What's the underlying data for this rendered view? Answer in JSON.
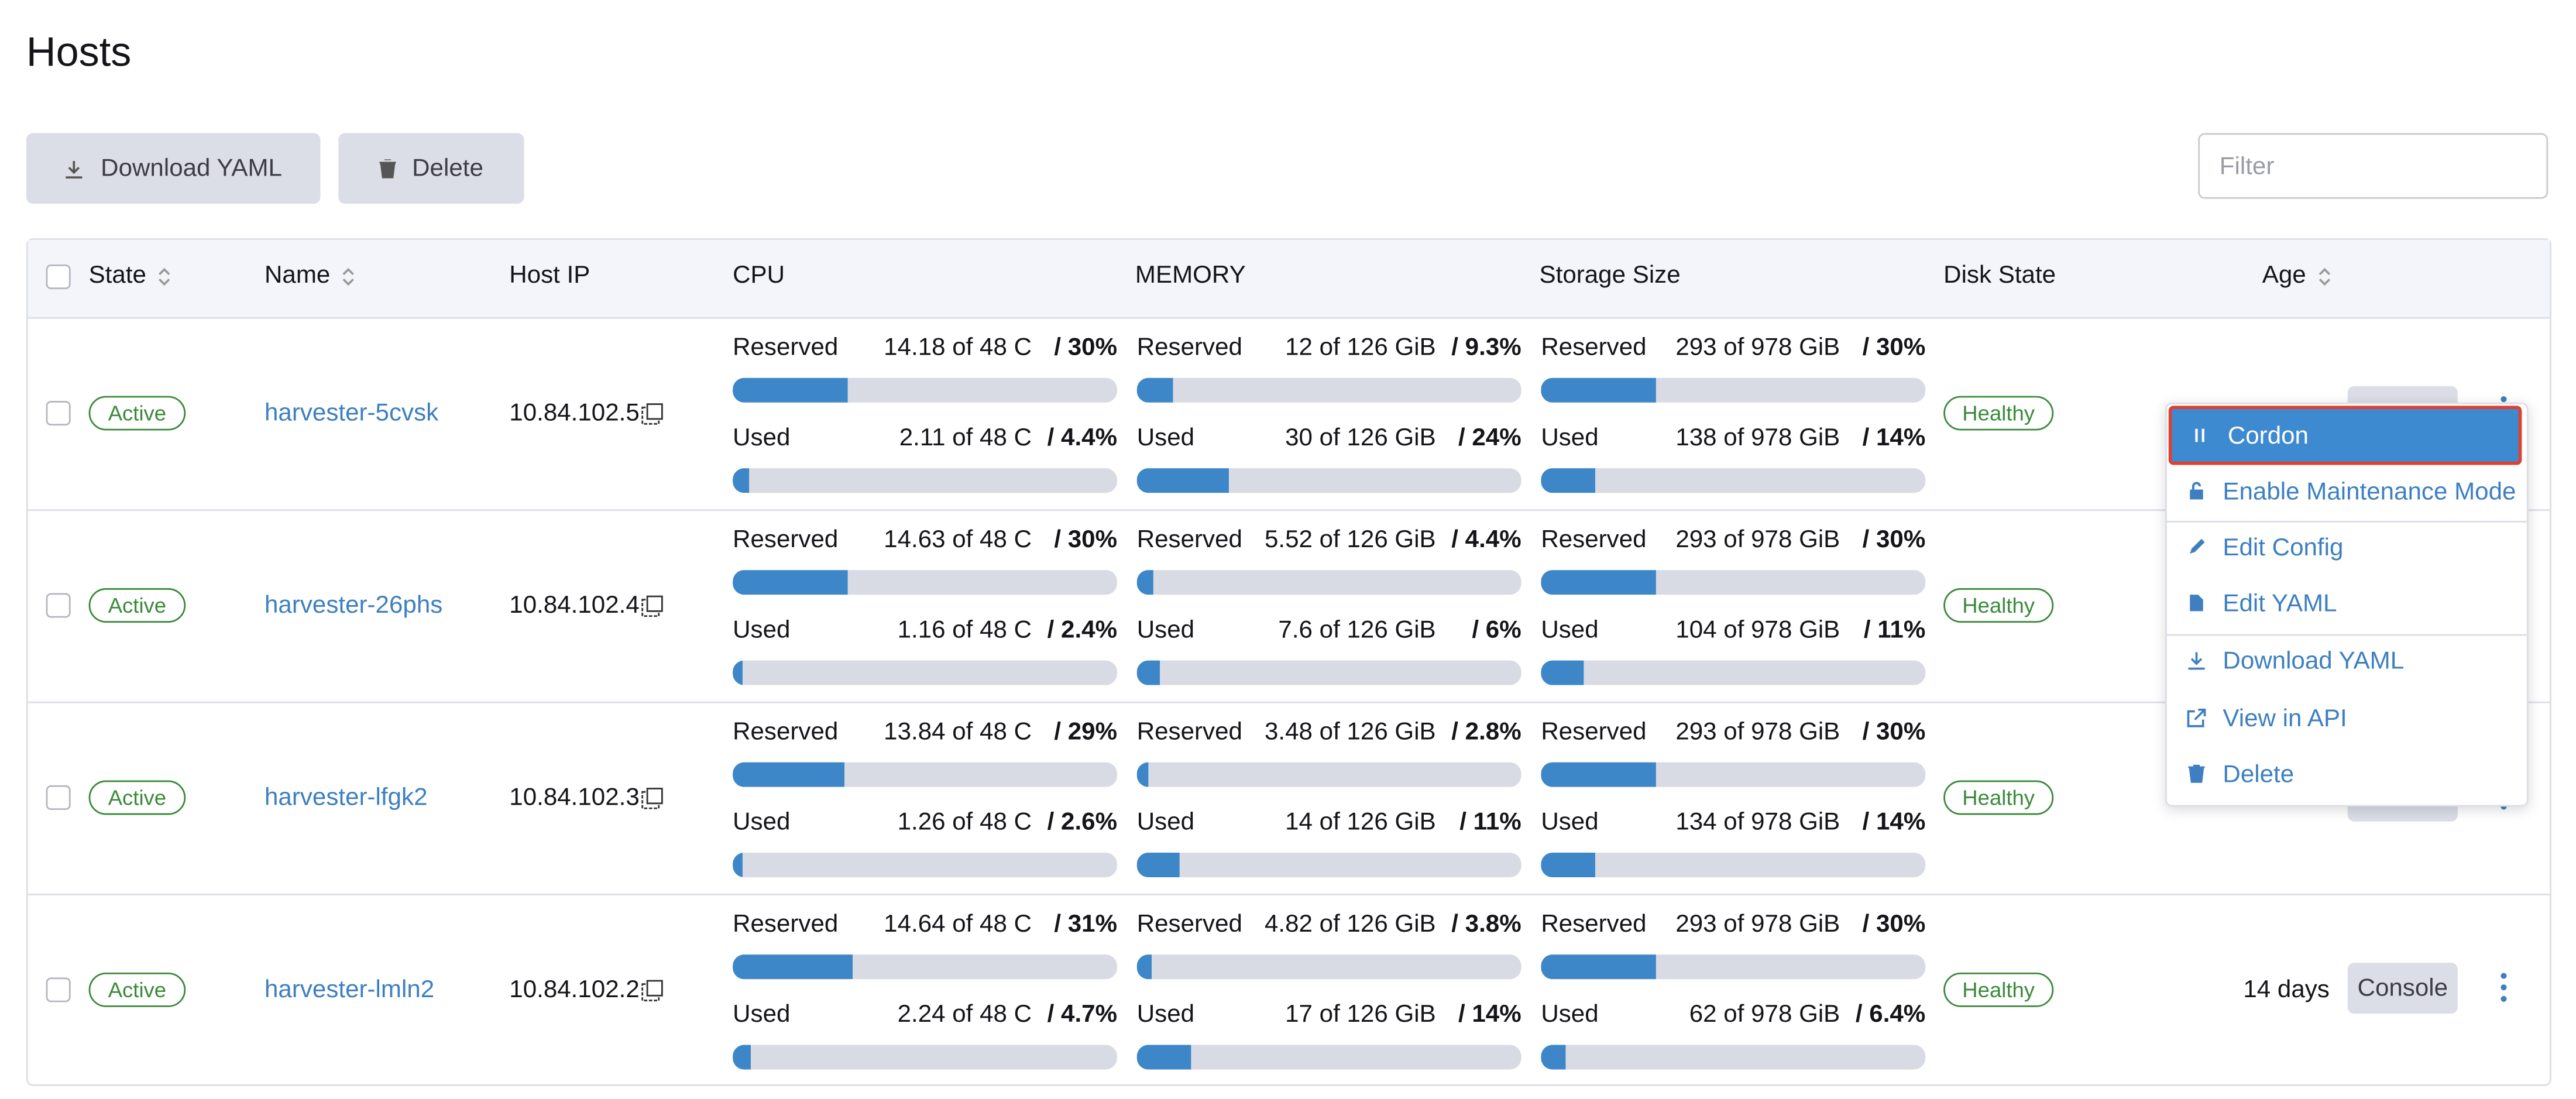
{
  "header": {
    "title": "Hosts"
  },
  "toolbar": {
    "buttons": [
      "Download YAML",
      "Delete"
    ],
    "filter_placeholder": "Filter"
  },
  "table": {
    "columns": [
      "State",
      "Name",
      "Host IP",
      "CPU",
      "MEMORY",
      "Storage Size",
      "Disk State",
      "Age"
    ],
    "stat_labels": [
      "Reserved",
      "Used"
    ],
    "rows": [
      {
        "state": "Active",
        "name": "harvester-5cvsk",
        "ip": "10.84.102.5",
        "disk_state": "Healthy",
        "cpu": {
          "reserved": {
            "text": "14.18 of 48 C",
            "pct": 30,
            "pct_label": "/ 30%"
          },
          "used": {
            "text": "2.11 of 48 C",
            "pct": 4.4,
            "pct_label": "/ 4.4%"
          }
        },
        "memory": {
          "reserved": {
            "text": "12 of 126 GiB",
            "pct": 9.3,
            "pct_label": "/ 9.3%"
          },
          "used": {
            "text": "30 of 126 GiB",
            "pct": 24,
            "pct_label": "/ 24%"
          }
        },
        "storage": {
          "reserved": {
            "text": "293 of 978 GiB",
            "pct": 30,
            "pct_label": "/ 30%"
          },
          "used": {
            "text": "138 of 978 GiB",
            "pct": 14,
            "pct_label": "/ 14%"
          }
        }
      },
      {
        "state": "Active",
        "name": "harvester-26phs",
        "ip": "10.84.102.4",
        "disk_state": "Healthy",
        "cpu": {
          "reserved": {
            "text": "14.63 of 48 C",
            "pct": 30,
            "pct_label": "/ 30%"
          },
          "used": {
            "text": "1.16 of 48 C",
            "pct": 2.4,
            "pct_label": "/ 2.4%"
          }
        },
        "memory": {
          "reserved": {
            "text": "5.52 of 126 GiB",
            "pct": 4.4,
            "pct_label": "/ 4.4%"
          },
          "used": {
            "text": "7.6 of 126 GiB",
            "pct": 6,
            "pct_label": "/ 6%"
          }
        },
        "storage": {
          "reserved": {
            "text": "293 of 978 GiB",
            "pct": 30,
            "pct_label": "/ 30%"
          },
          "used": {
            "text": "104 of 978 GiB",
            "pct": 11,
            "pct_label": "/ 11%"
          }
        }
      },
      {
        "state": "Active",
        "name": "harvester-lfgk2",
        "ip": "10.84.102.3",
        "disk_state": "Healthy",
        "cpu": {
          "reserved": {
            "text": "13.84 of 48 C",
            "pct": 29,
            "pct_label": "/ 29%"
          },
          "used": {
            "text": "1.26 of 48 C",
            "pct": 2.6,
            "pct_label": "/ 2.6%"
          }
        },
        "memory": {
          "reserved": {
            "text": "3.48 of 126 GiB",
            "pct": 2.8,
            "pct_label": "/ 2.8%"
          },
          "used": {
            "text": "14 of 126 GiB",
            "pct": 11,
            "pct_label": "/ 11%"
          }
        },
        "storage": {
          "reserved": {
            "text": "293 of 978 GiB",
            "pct": 30,
            "pct_label": "/ 30%"
          },
          "used": {
            "text": "134 of 978 GiB",
            "pct": 14,
            "pct_label": "/ 14%"
          }
        }
      },
      {
        "state": "Active",
        "name": "harvester-lmln2",
        "ip": "10.84.102.2",
        "disk_state": "Healthy",
        "age": "14 days",
        "console": "Console",
        "cpu": {
          "reserved": {
            "text": "14.64 of 48 C",
            "pct": 31,
            "pct_label": "/ 31%"
          },
          "used": {
            "text": "2.24 of 48 C",
            "pct": 4.7,
            "pct_label": "/ 4.7%"
          }
        },
        "memory": {
          "reserved": {
            "text": "4.82 of 126 GiB",
            "pct": 3.8,
            "pct_label": "/ 3.8%"
          },
          "used": {
            "text": "17 of 126 GiB",
            "pct": 14,
            "pct_label": "/ 14%"
          }
        },
        "storage": {
          "reserved": {
            "text": "293 of 978 GiB",
            "pct": 30,
            "pct_label": "/ 30%"
          },
          "used": {
            "text": "62 of 978 GiB",
            "pct": 6.4,
            "pct_label": "/ 6.4%"
          }
        }
      }
    ]
  },
  "menu": {
    "items": [
      "Cordon",
      "Enable Maintenance Mode",
      "Edit Config",
      "Edit YAML",
      "Download YAML",
      "View in API",
      "Delete"
    ]
  }
}
